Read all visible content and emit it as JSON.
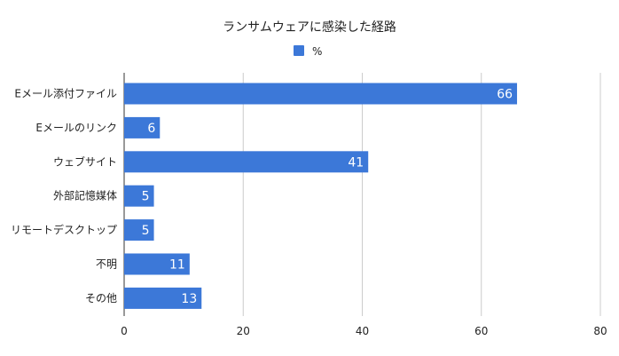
{
  "chart_data": {
    "type": "bar",
    "orientation": "horizontal",
    "title": "ランサムウェアに感染した経路",
    "categories": [
      "Eメール添付ファイル",
      "Eメールのリンク",
      "ウェブサイト",
      "外部記憶媒体",
      "リモートデスクトップ",
      "不明",
      "その他"
    ],
    "series": [
      {
        "name": "%",
        "values": [
          66,
          6,
          41,
          5,
          5,
          11,
          13
        ],
        "color": "#3c78d8"
      }
    ],
    "xlim": [
      0,
      80
    ],
    "xticks": [
      0,
      20,
      40,
      60,
      80
    ],
    "grid": true,
    "legend": "top-center",
    "data_labels": true
  }
}
